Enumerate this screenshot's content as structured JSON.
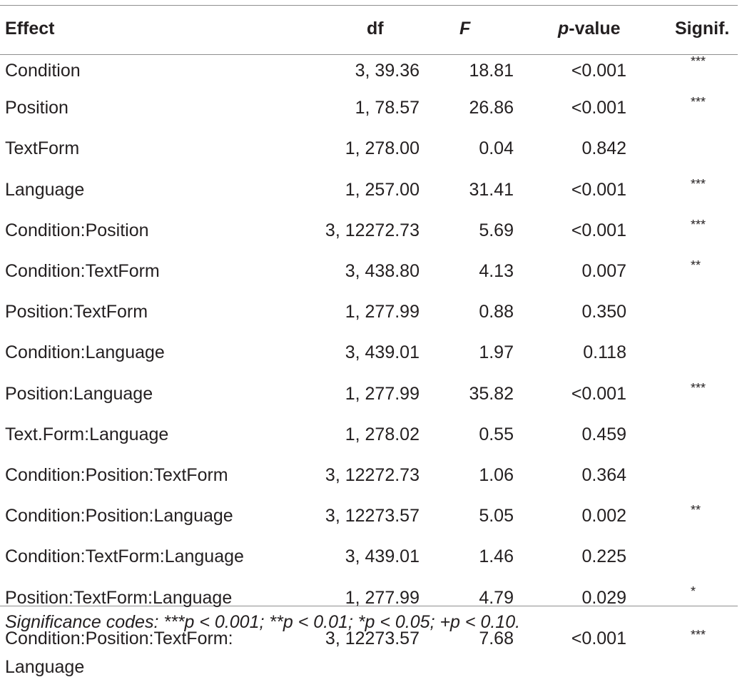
{
  "table": {
    "headers": {
      "effect": "Effect",
      "df": "df",
      "f": "F",
      "p_prefix": "p",
      "p_suffix": "-value",
      "signif": "Signif."
    },
    "rows": [
      {
        "effect": "Condition",
        "df": "3, 39.36",
        "f": "18.81",
        "p": "<0.001",
        "signif": "***"
      },
      {
        "effect": "Position",
        "df": "1, 78.57",
        "f": "26.86",
        "p": "<0.001",
        "signif": "***"
      },
      {
        "effect": "TextForm",
        "df": "1, 278.00",
        "f": "0.04",
        "p": "0.842",
        "signif": ""
      },
      {
        "effect": "Language",
        "df": "1, 257.00",
        "f": "31.41",
        "p": "<0.001",
        "signif": "***"
      },
      {
        "effect": "Condition:Position",
        "df": "3, 12272.73",
        "f": "5.69",
        "p": "<0.001",
        "signif": "***"
      },
      {
        "effect": "Condition:TextForm",
        "df": "3, 438.80",
        "f": "4.13",
        "p": "0.007",
        "signif": "**"
      },
      {
        "effect": "Position:TextForm",
        "df": "1, 277.99",
        "f": "0.88",
        "p": "0.350",
        "signif": ""
      },
      {
        "effect": "Condition:Language",
        "df": "3, 439.01",
        "f": "1.97",
        "p": "0.118",
        "signif": ""
      },
      {
        "effect": "Position:Language",
        "df": "1, 277.99",
        "f": "35.82",
        "p": "<0.001",
        "signif": "***"
      },
      {
        "effect": "Text.Form:Language",
        "df": "1, 278.02",
        "f": "0.55",
        "p": "0.459",
        "signif": ""
      },
      {
        "effect": "Condition:Position:TextForm",
        "df": "3, 12272.73",
        "f": "1.06",
        "p": "0.364",
        "signif": ""
      },
      {
        "effect": "Condition:Position:Language",
        "df": "3, 12273.57",
        "f": "5.05",
        "p": "0.002",
        "signif": "**"
      },
      {
        "effect": "Condition:TextForm:Language",
        "df": "3, 439.01",
        "f": "1.46",
        "p": "0.225",
        "signif": ""
      },
      {
        "effect": "Position:TextForm:Language",
        "df": "1, 277.99",
        "f": "4.79",
        "p": "0.029",
        "signif": "*"
      },
      {
        "effect": "Condition:Position:TextForm: Language",
        "df": "3, 12273.57",
        "f": "7.68",
        "p": "<0.001",
        "signif": "***"
      }
    ],
    "footnote": "Significance codes: ***p < 0.001; **p < 0.01; *p < 0.05; +p < 0.10."
  }
}
